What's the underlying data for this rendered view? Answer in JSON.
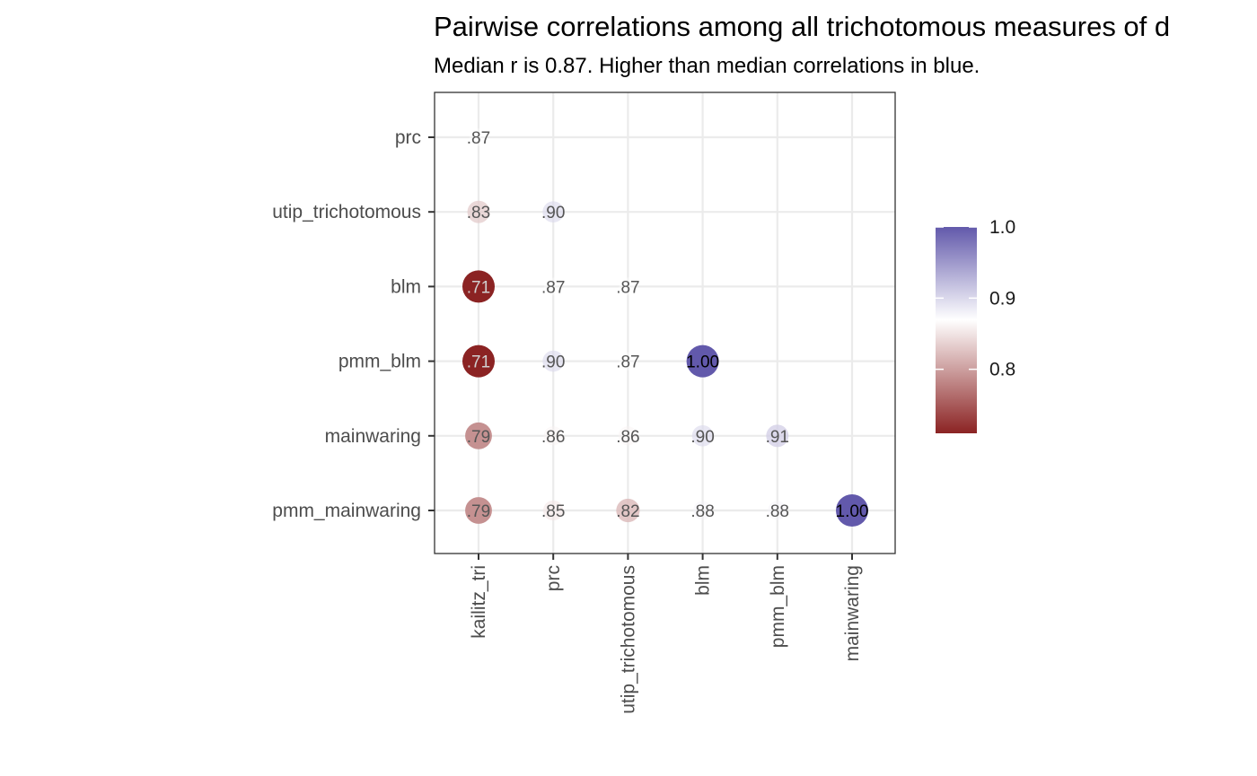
{
  "chart_data": {
    "type": "scatter",
    "title": "Pairwise correlations among all trichotomous measures of d",
    "subtitle": "Median r is 0.87. Higher than median correlations in blue.",
    "xlabel": "",
    "ylabel": "",
    "x_categories": [
      "kailitz_tri",
      "prc",
      "utip_trichotomous",
      "blm",
      "pmm_blm",
      "mainwaring"
    ],
    "y_categories": [
      "prc",
      "utip_trichotomous",
      "blm",
      "pmm_blm",
      "mainwaring",
      "pmm_mainwaring"
    ],
    "grid": true,
    "legend_position": "right",
    "color_scale": {
      "low": "#8b2323",
      "mid": "#ffffff",
      "high": "#6259ab",
      "min": 0.71,
      "mid_value": 0.87,
      "max": 1.0,
      "ticks": [
        "0.8",
        "0.9",
        "1.0"
      ],
      "tick_values": [
        0.8,
        0.9,
        1.0
      ]
    },
    "points": [
      {
        "x": "kailitz_tri",
        "y": "prc",
        "r": 0.87,
        "label": ".87"
      },
      {
        "x": "kailitz_tri",
        "y": "utip_trichotomous",
        "r": 0.83,
        "label": ".83"
      },
      {
        "x": "prc",
        "y": "utip_trichotomous",
        "r": 0.9,
        "label": ".90"
      },
      {
        "x": "kailitz_tri",
        "y": "blm",
        "r": 0.71,
        "label": ".71"
      },
      {
        "x": "prc",
        "y": "blm",
        "r": 0.87,
        "label": ".87"
      },
      {
        "x": "utip_trichotomous",
        "y": "blm",
        "r": 0.87,
        "label": ".87"
      },
      {
        "x": "kailitz_tri",
        "y": "pmm_blm",
        "r": 0.71,
        "label": ".71"
      },
      {
        "x": "prc",
        "y": "pmm_blm",
        "r": 0.9,
        "label": ".90"
      },
      {
        "x": "utip_trichotomous",
        "y": "pmm_blm",
        "r": 0.87,
        "label": ".87"
      },
      {
        "x": "blm",
        "y": "pmm_blm",
        "r": 1.0,
        "label": "1.00"
      },
      {
        "x": "kailitz_tri",
        "y": "mainwaring",
        "r": 0.79,
        "label": ".79"
      },
      {
        "x": "prc",
        "y": "mainwaring",
        "r": 0.86,
        "label": ".86"
      },
      {
        "x": "utip_trichotomous",
        "y": "mainwaring",
        "r": 0.86,
        "label": ".86"
      },
      {
        "x": "blm",
        "y": "mainwaring",
        "r": 0.9,
        "label": ".90"
      },
      {
        "x": "pmm_blm",
        "y": "mainwaring",
        "r": 0.91,
        "label": ".91"
      },
      {
        "x": "kailitz_tri",
        "y": "pmm_mainwaring",
        "r": 0.79,
        "label": ".79"
      },
      {
        "x": "prc",
        "y": "pmm_mainwaring",
        "r": 0.85,
        "label": ".85"
      },
      {
        "x": "utip_trichotomous",
        "y": "pmm_mainwaring",
        "r": 0.82,
        "label": ".82"
      },
      {
        "x": "blm",
        "y": "pmm_mainwaring",
        "r": 0.88,
        "label": ".88"
      },
      {
        "x": "pmm_blm",
        "y": "pmm_mainwaring",
        "r": 0.88,
        "label": ".88"
      },
      {
        "x": "mainwaring",
        "y": "pmm_mainwaring",
        "r": 1.0,
        "label": "1.00"
      }
    ]
  }
}
